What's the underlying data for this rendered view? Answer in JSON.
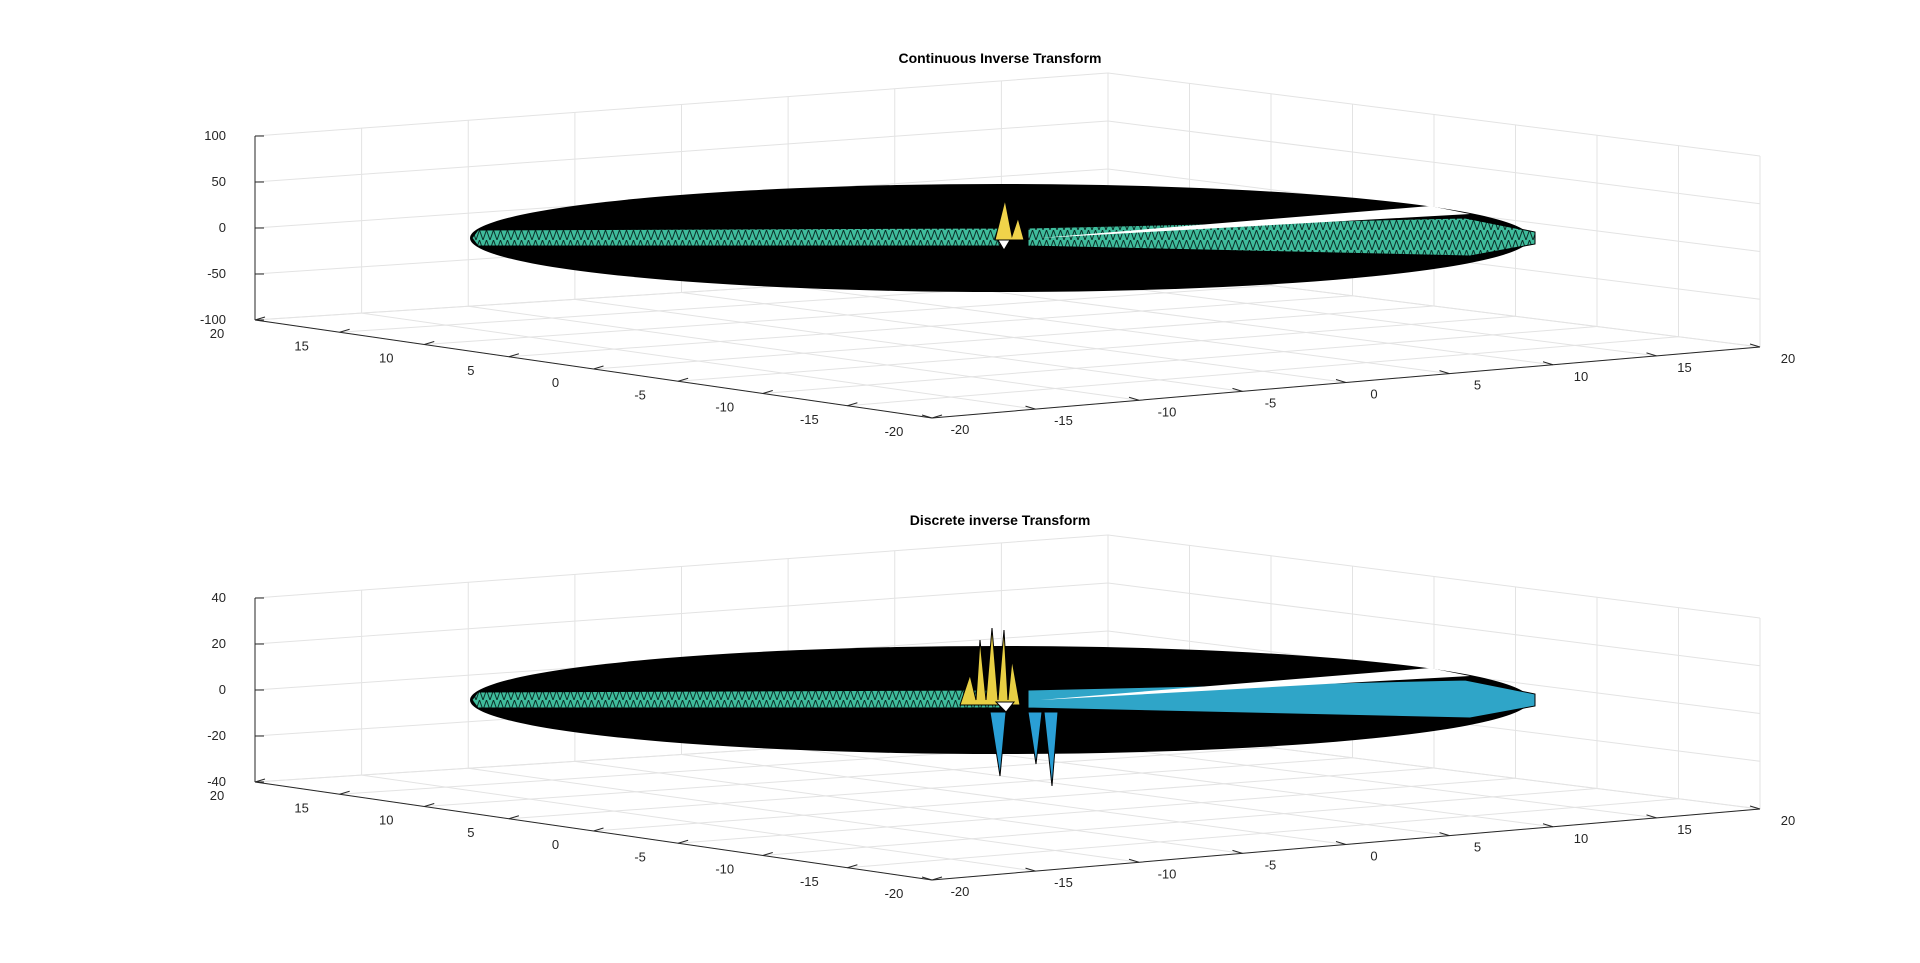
{
  "figure": {
    "background": "#ffffff"
  },
  "chart_data": [
    {
      "type": "surface",
      "title": "Continuous Inverse Transform",
      "xlabel": "",
      "ylabel": "",
      "zlabel": "",
      "xlim": [
        -20,
        20
      ],
      "ylim": [
        -20,
        20
      ],
      "zlim": [
        -100,
        100
      ],
      "x_ticks": [
        "-20",
        "-15",
        "-10",
        "-5",
        "0",
        "5",
        "10",
        "15",
        "20"
      ],
      "y_ticks": [
        "-20",
        "-15",
        "-10",
        "-5",
        "0",
        "5",
        "10",
        "15",
        "20"
      ],
      "z_ticks": [
        "-100",
        "-50",
        "0",
        "50",
        "100"
      ],
      "grid": true,
      "colormap": "parula",
      "colors": {
        "edge": "#000000",
        "body": "#40c0a0",
        "highlight": "#f5e04a",
        "low": "#2a9fd6"
      },
      "description_values": {
        "surface_mean_z": 0,
        "peak_z_approx": 30,
        "trough_z_approx": -25
      }
    },
    {
      "type": "surface",
      "title": "Discrete inverse Transform",
      "xlabel": "",
      "ylabel": "",
      "zlabel": "",
      "xlim": [
        -20,
        20
      ],
      "ylim": [
        -20,
        20
      ],
      "zlim": [
        -40,
        40
      ],
      "x_ticks": [
        "-20",
        "-15",
        "-10",
        "-5",
        "0",
        "5",
        "10",
        "15",
        "20"
      ],
      "y_ticks": [
        "-20",
        "-15",
        "-10",
        "-5",
        "0",
        "5",
        "10",
        "15",
        "20"
      ],
      "z_ticks": [
        "-40",
        "-20",
        "0",
        "20",
        "40"
      ],
      "grid": true,
      "colormap": "parula",
      "colors": {
        "edge": "#000000",
        "body": "#40c0a0",
        "highlight": "#f5e04a",
        "low": "#2a9fd6"
      },
      "description_values": {
        "surface_mean_z": 0,
        "peak_z_approx": 28,
        "trough_z_approx": -38
      }
    }
  ]
}
